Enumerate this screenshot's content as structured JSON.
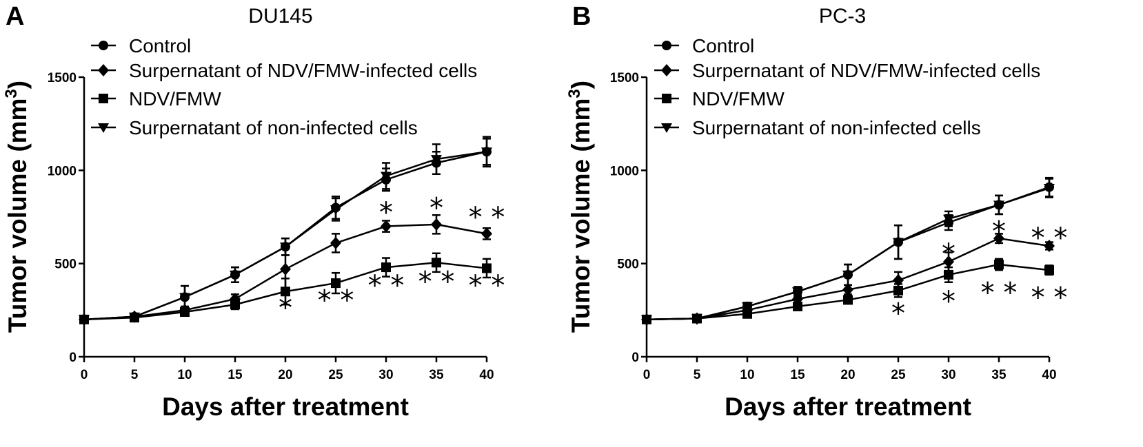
{
  "chart_data": [
    {
      "panel": "A",
      "type": "line",
      "title": "DU145",
      "xlabel": "Days after treatment",
      "ylabel": "Tumor volume (mm",
      "ylabel_sup": "3",
      "ylabel_close": ")",
      "x": [
        0,
        5,
        10,
        15,
        20,
        25,
        30,
        35,
        40
      ],
      "xlim": [
        0,
        40
      ],
      "ylim": [
        0,
        1500
      ],
      "xticks": [
        "0",
        "5",
        "10",
        "15",
        "20",
        "25",
        "30",
        "35",
        "40"
      ],
      "yticks": [
        "0",
        "500",
        "1000",
        "1500"
      ],
      "grid": false,
      "legend_position": "top-left",
      "series": [
        {
          "name": "Control",
          "marker": "circle",
          "values": [
            200,
            215,
            320,
            440,
            590,
            800,
            950,
            1040,
            1100
          ],
          "errors": [
            10,
            15,
            60,
            40,
            45,
            60,
            60,
            60,
            70
          ]
        },
        {
          "name": "Surpernatant of NDV/FMW-infected cells",
          "marker": "diamond",
          "values": [
            200,
            215,
            250,
            310,
            470,
            610,
            700,
            710,
            660
          ],
          "errors": [
            10,
            15,
            20,
            25,
            130,
            50,
            30,
            50,
            30
          ]
        },
        {
          "name": "NDV/FMW",
          "marker": "square",
          "values": [
            200,
            210,
            240,
            280,
            350,
            395,
            480,
            505,
            475
          ],
          "errors": [
            10,
            15,
            20,
            25,
            70,
            55,
            50,
            50,
            50
          ]
        },
        {
          "name": "Surpernatant of non-infected cells",
          "marker": "triangle-down",
          "values": [
            200,
            215,
            320,
            440,
            590,
            790,
            970,
            1060,
            1100
          ],
          "errors": [
            10,
            15,
            60,
            40,
            45,
            60,
            70,
            80,
            80
          ]
        }
      ],
      "annotations": [
        {
          "x": 20,
          "y": 265,
          "text": "*"
        },
        {
          "x": 25,
          "y": 305,
          "text": "* *"
        },
        {
          "x": 30,
          "y": 385,
          "text": "* *"
        },
        {
          "x": 35,
          "y": 405,
          "text": "* *"
        },
        {
          "x": 40,
          "y": 385,
          "text": "* *"
        },
        {
          "x": 30,
          "y": 775,
          "text": "*"
        },
        {
          "x": 35,
          "y": 800,
          "text": "*"
        },
        {
          "x": 40,
          "y": 750,
          "text": "* *"
        }
      ]
    },
    {
      "panel": "B",
      "type": "line",
      "title": "PC-3",
      "xlabel": "Days after treatment",
      "ylabel": "Tumor volume (mm",
      "ylabel_sup": "3",
      "ylabel_close": ")",
      "x": [
        0,
        5,
        10,
        15,
        20,
        25,
        30,
        35,
        40
      ],
      "xlim": [
        0,
        40
      ],
      "ylim": [
        0,
        1500
      ],
      "xticks": [
        "0",
        "5",
        "10",
        "15",
        "20",
        "25",
        "30",
        "35",
        "40"
      ],
      "yticks": [
        "0",
        "500",
        "1000",
        "1500"
      ],
      "grid": false,
      "legend_position": "top-left",
      "series": [
        {
          "name": "Control",
          "marker": "circle",
          "values": [
            200,
            205,
            270,
            350,
            440,
            615,
            720,
            815,
            910
          ],
          "errors": [
            10,
            10,
            20,
            25,
            55,
            90,
            40,
            50,
            50
          ]
        },
        {
          "name": "Surpernatant of NDV/FMW-infected cells",
          "marker": "diamond",
          "values": [
            200,
            205,
            250,
            310,
            360,
            410,
            510,
            635,
            595
          ],
          "errors": [
            10,
            10,
            20,
            25,
            25,
            45,
            50,
            25,
            20
          ]
        },
        {
          "name": "NDV/FMW",
          "marker": "square",
          "values": [
            200,
            205,
            230,
            270,
            305,
            355,
            440,
            495,
            465
          ],
          "errors": [
            10,
            10,
            20,
            20,
            20,
            35,
            40,
            30,
            25
          ]
        },
        {
          "name": "Surpernatant of non-infected cells",
          "marker": "triangle-down",
          "values": [
            200,
            205,
            270,
            350,
            440,
            615,
            740,
            815,
            905
          ],
          "errors": [
            10,
            10,
            20,
            25,
            55,
            90,
            40,
            50,
            50
          ]
        }
      ],
      "annotations": [
        {
          "x": 25,
          "y": 235,
          "text": "*"
        },
        {
          "x": 30,
          "y": 300,
          "text": "*"
        },
        {
          "x": 35,
          "y": 345,
          "text": "* *"
        },
        {
          "x": 40,
          "y": 320,
          "text": "* *"
        },
        {
          "x": 30,
          "y": 555,
          "text": "*"
        },
        {
          "x": 35,
          "y": 675,
          "text": "*"
        },
        {
          "x": 40,
          "y": 640,
          "text": "* *"
        }
      ]
    }
  ]
}
